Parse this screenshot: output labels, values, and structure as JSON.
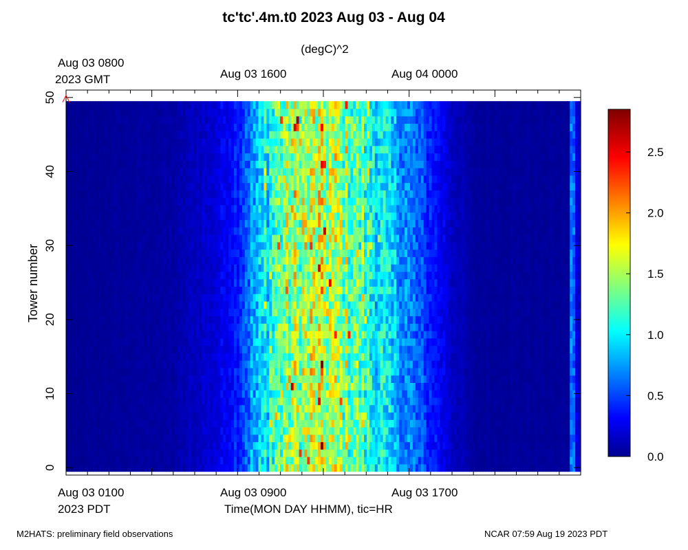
{
  "chart_data": {
    "type": "heatmap",
    "title": "tc'tc'.4m.t0 2023 Aug 03 - Aug 04",
    "units": "(degC)^2",
    "ylabel": "Tower number",
    "xlabel": "Time(MON DAY HHMM), tic=HR",
    "ylim": [
      -1,
      51
    ],
    "y_range_data": [
      0,
      49
    ],
    "yticks": [
      0,
      10,
      20,
      30,
      40,
      50
    ],
    "x_hours_pdt": [
      0,
      24
    ],
    "top_axis": {
      "timezone_label": "2023 GMT",
      "labels": [
        "Aug 03 0800",
        "Aug 03 1600",
        "Aug 04 0000"
      ]
    },
    "bottom_axis": {
      "timezone_label": "2023 PDT",
      "labels": [
        "Aug 03 0100",
        "Aug 03 0900",
        "Aug 03 1700"
      ]
    },
    "colorbar": {
      "min": 0.0,
      "max": 2.85,
      "ticks": [
        "0.0",
        "0.5",
        "1.0",
        "1.5",
        "2.0",
        "2.5"
      ],
      "colormap": "jet"
    },
    "variance_profile_by_hour_pdt": [
      {
        "hour": 0,
        "value": 0.05
      },
      {
        "hour": 5,
        "value": 0.1
      },
      {
        "hour": 7,
        "value": 0.25
      },
      {
        "hour": 8,
        "value": 0.45
      },
      {
        "hour": 9,
        "value": 0.9
      },
      {
        "hour": 10,
        "value": 1.35
      },
      {
        "hour": 11,
        "value": 1.55
      },
      {
        "hour": 12,
        "value": 1.6
      },
      {
        "hour": 13,
        "value": 1.45
      },
      {
        "hour": 14,
        "value": 1.2
      },
      {
        "hour": 15,
        "value": 0.95
      },
      {
        "hour": 16,
        "value": 0.7
      },
      {
        "hour": 17,
        "value": 0.45
      },
      {
        "hour": 18,
        "value": 0.2
      },
      {
        "hour": 19,
        "value": 0.08
      },
      {
        "hour": 23.5,
        "value": 0.07
      },
      {
        "hour": 23.6,
        "value": 1.05
      },
      {
        "hour": 23.75,
        "value": 0.3
      },
      {
        "hour": 24,
        "value": 0.15
      }
    ],
    "annotations": [
      {
        "type": "marker",
        "symbol": "^",
        "color": "#ff0000",
        "x_hour_pdt": 0,
        "y": 50
      }
    ]
  },
  "footer": {
    "left": "M2HATS: preliminary field observations",
    "right": "NCAR 07:59 Aug 19 2023 PDT"
  }
}
